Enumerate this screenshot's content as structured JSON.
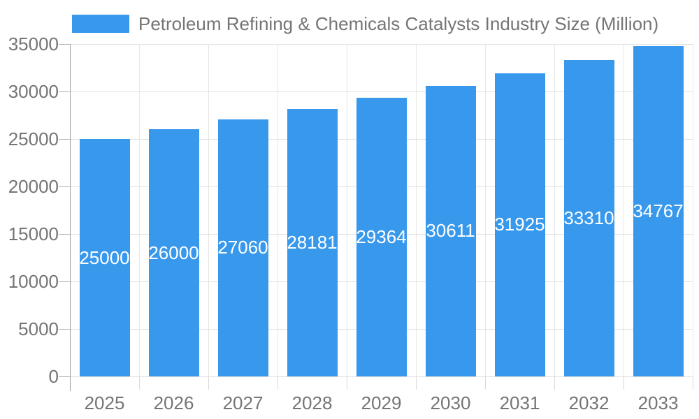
{
  "chart_data": {
    "type": "bar",
    "title": "Petroleum Refining & Chemicals Catalysts Industry Size (Million)",
    "categories": [
      "2025",
      "2026",
      "2027",
      "2028",
      "2029",
      "2030",
      "2031",
      "2032",
      "2033"
    ],
    "values": [
      25000,
      26000,
      27060,
      28181,
      29364,
      30611,
      31925,
      33310,
      34767
    ],
    "value_labels": [
      "25000",
      "26000",
      "27060",
      "28181",
      "29364",
      "30611",
      "31925",
      "33310",
      "34767"
    ],
    "ytick_labels": [
      "0",
      "5000",
      "10000",
      "15000",
      "20000",
      "25000",
      "30000",
      "35000"
    ],
    "xlabel": "",
    "ylabel": "",
    "ylim": [
      0,
      35000
    ],
    "ytick_step": 5000,
    "grid": true,
    "legend_position": "top-left",
    "colors": {
      "bar": "#3898EC",
      "value_label_text": "#ffffff",
      "axis_text": "#757575",
      "gridline_h": "#e0e0e0",
      "gridline_v": "#e6e6e6",
      "axis_line": "#9e9e9e",
      "y_tick": "#b0b0b0",
      "x_tick": "#d9d9d9",
      "background": "#ffffff"
    }
  }
}
